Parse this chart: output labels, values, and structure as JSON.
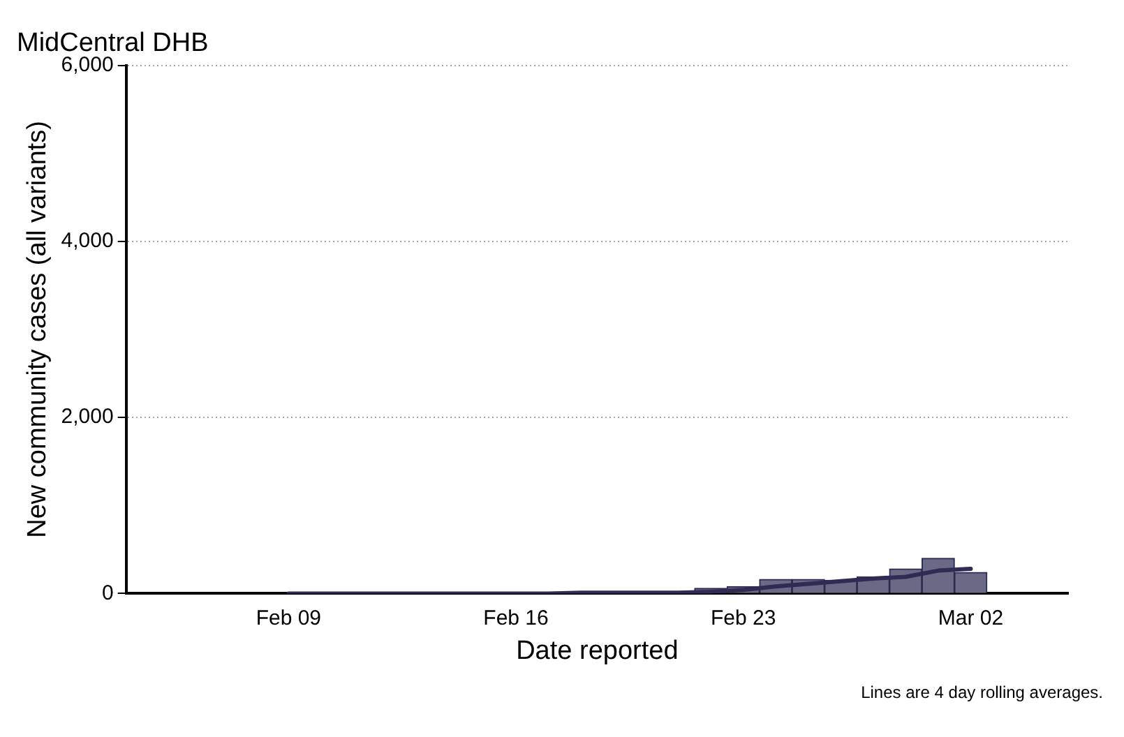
{
  "chart_data": {
    "type": "bar",
    "title": "MidCentral DHB",
    "xlabel": "Date reported",
    "ylabel": "New community cases (all variants)",
    "annotations": [
      "Lines are 4 day rolling averages."
    ],
    "x": [
      "--02-08",
      "--02-09",
      "--02-10",
      "--02-11",
      "--02-12",
      "--02-13",
      "--02-14",
      "--02-15",
      "--02-16",
      "--02-17",
      "--02-18",
      "--02-19",
      "--02-20",
      "--02-21",
      "--02-22",
      "--02-23",
      "--02-24",
      "--02-25",
      "--02-26",
      "--02-27",
      "--02-28",
      "--03-01",
      "--03-02"
    ],
    "series": [
      {
        "color": "#6b6a86",
        "values": [
          0,
          0,
          0,
          0,
          0,
          0,
          0,
          0,
          0,
          0,
          10,
          10,
          10,
          20,
          60,
          80,
          160,
          160,
          150,
          190,
          280,
          400,
          240
        ]
      },
      {
        "type": "line",
        "color": "#2f2b55",
        "x": [
          "--02-09",
          "--02-10",
          "--02-11",
          "--02-12",
          "--02-13",
          "--02-14",
          "--02-15",
          "--02-16",
          "--02-17",
          "--02-18",
          "--02-19",
          "--02-20",
          "--02-21",
          "--02-22",
          "--02-23",
          "--02-24",
          "--02-25",
          "--02-26",
          "--02-27",
          "--02-28",
          "--03-01",
          "--03-02"
        ],
        "values": [
          0,
          0,
          0,
          0,
          0,
          0,
          0,
          0,
          0,
          10,
          10,
          10,
          10,
          20,
          40,
          80,
          110,
          140,
          170,
          190,
          260,
          280
        ]
      }
    ],
    "xlim": [
      "--02-04",
      "--03-05"
    ],
    "xticks": [
      {
        "value": "--02-09",
        "label": "Feb 09"
      },
      {
        "value": "--02-16",
        "label": "Feb 16"
      },
      {
        "value": "--02-23",
        "label": "Feb 23"
      },
      {
        "value": "--03-02",
        "label": "Mar 02"
      }
    ],
    "ylim": [
      0,
      6000
    ],
    "yticks": [
      0,
      {
        "value": 2000,
        "label": "2,000"
      },
      {
        "value": 4000,
        "label": "4,000"
      },
      {
        "value": 6000,
        "label": "6,000"
      }
    ],
    "grid": "y",
    "legend": false,
    "marker": "none",
    "line_style": "solid"
  }
}
